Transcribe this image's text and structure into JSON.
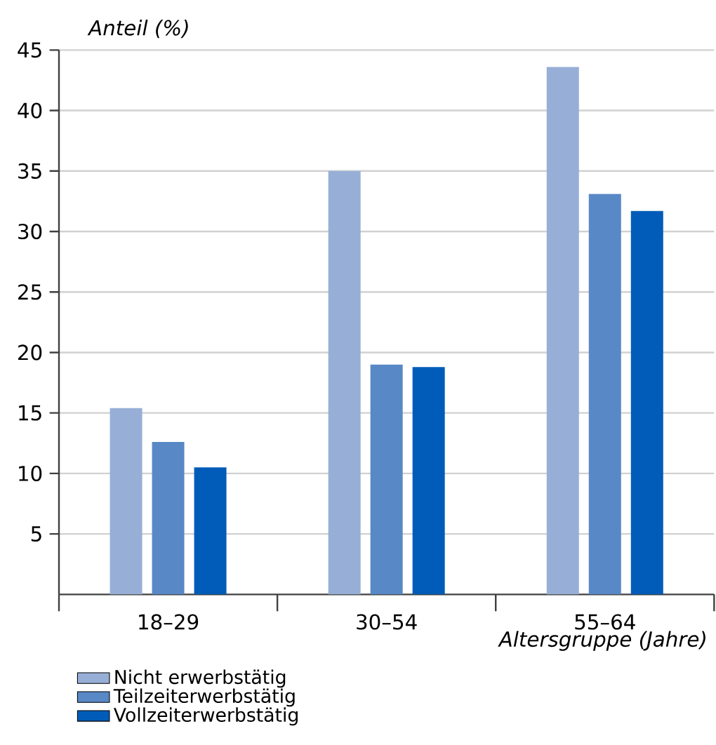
{
  "chart_data": {
    "type": "bar",
    "ylabel": "Anteil (%)",
    "xlabel": "Altersgruppe (Jahre)",
    "categories": [
      "18–29",
      "30–54",
      "55–64"
    ],
    "series": [
      {
        "name": "Nicht erwerbstätig",
        "color": "#97afd6",
        "values": [
          15.4,
          35.0,
          43.6
        ]
      },
      {
        "name": "Teilzeiterwerbstätig",
        "color": "#5888c5",
        "values": [
          12.6,
          19.0,
          33.1
        ]
      },
      {
        "name": "Vollzeiterwerbstätig",
        "color": "#005cb8",
        "values": [
          10.5,
          18.8,
          31.7
        ]
      }
    ],
    "ylim": [
      0,
      45
    ],
    "yticks": [
      5,
      10,
      15,
      20,
      25,
      30,
      35,
      40,
      45
    ],
    "grid": "y",
    "legend": "bottom"
  }
}
